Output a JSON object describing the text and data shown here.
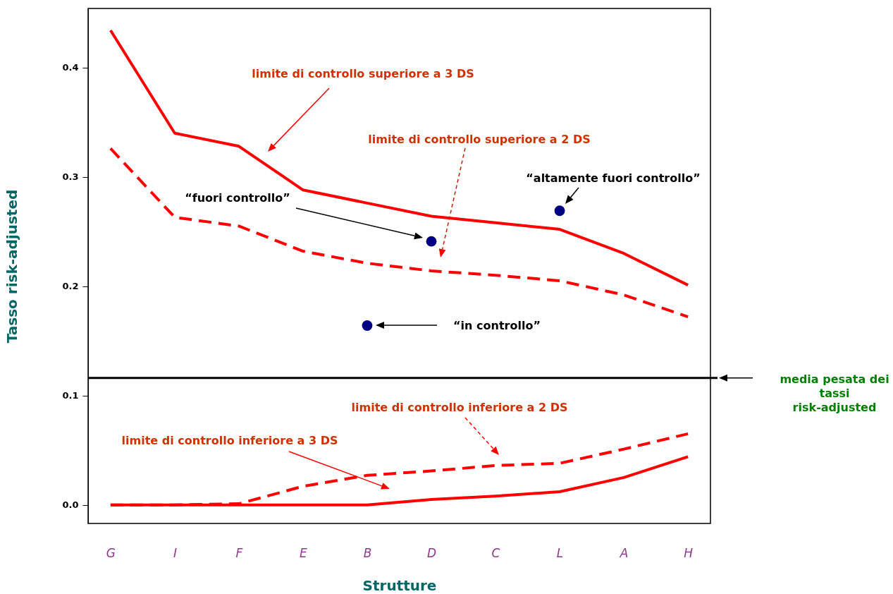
{
  "chart_data": {
    "type": "line",
    "xlabel": "Strutture",
    "ylabel": "Tasso risk-adjusted",
    "categories": [
      "G",
      "I",
      "F",
      "E",
      "B",
      "D",
      "C",
      "L",
      "A",
      "H"
    ],
    "ylim": [
      -0.017,
      0.454
    ],
    "yticks": [
      {
        "value": 0,
        "label": "0.0"
      },
      0.1,
      0.2,
      0.3,
      0.4
    ],
    "grid": false,
    "series": [
      {
        "color": "#ff0000",
        "line_style": "solid",
        "marker": "none",
        "values": [
          0.434,
          0.34,
          0.328,
          0.288,
          0.276,
          0.264,
          0.258,
          0.252,
          0.23,
          0.201
        ]
      },
      {
        "color": "#ff0000",
        "line_style": "dashed",
        "marker": "none",
        "values": [
          0.326,
          0.263,
          0.255,
          0.232,
          0.221,
          0.214,
          0.21,
          0.205,
          0.192,
          0.172
        ]
      },
      {
        "color": "#ff0000",
        "line_style": "dashed",
        "marker": "none",
        "values": [
          0,
          0,
          0.001,
          0.017,
          0.027,
          0.031,
          0.036,
          0.038,
          0.051,
          0.065
        ]
      },
      {
        "color": "#ff0000",
        "line_style": "solid",
        "marker": "none",
        "values": [
          0,
          0,
          0,
          0,
          0,
          0.005,
          0.008,
          0.012,
          0.025,
          0.044
        ]
      },
      {
        "type": "scatter",
        "color": "#000080",
        "marker": "circle",
        "x": [
          "B",
          "D",
          "L"
        ],
        "values": [
          0.164,
          0.241,
          0.269
        ]
      }
    ],
    "ref_lines": [
      {
        "axis": "y",
        "value": 0.116,
        "label": "media pesata dei tassi risk-adjusted",
        "color": "#000000"
      }
    ],
    "annotations": [
      "limite di controllo superiore a 3 DS",
      "limite di controllo superiore a 2 DS",
      "limite di controllo inferiore a 2 DS",
      "limite di controllo inferiore a 3 DS",
      "“altamente fuori controllo”",
      "“fuori controllo”",
      "“in controllo”"
    ]
  }
}
